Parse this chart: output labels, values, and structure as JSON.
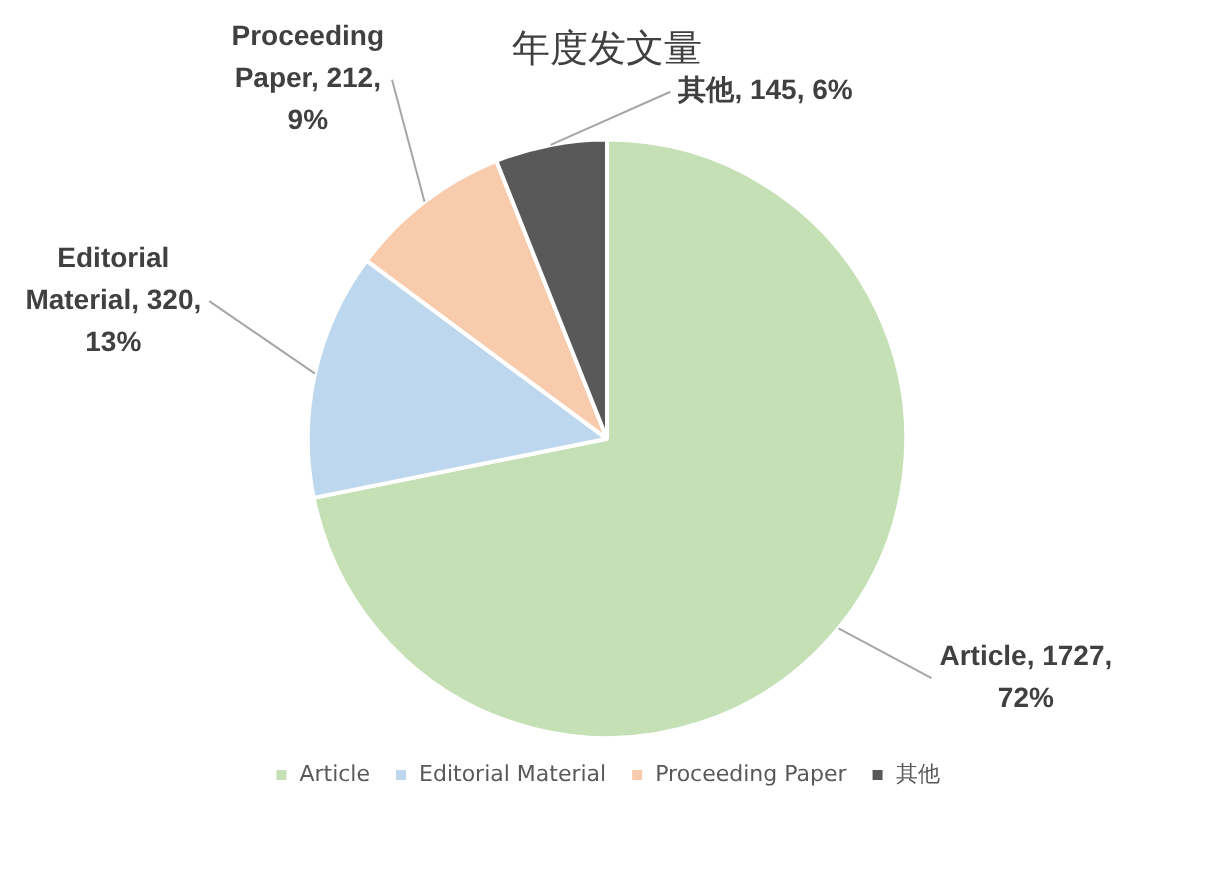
{
  "chart_data": {
    "type": "pie",
    "title": "年度发文量",
    "categories": [
      "Article",
      "Editorial Material",
      "Proceeding Paper",
      "其他"
    ],
    "values": [
      1727,
      320,
      212,
      145
    ],
    "colors": [
      "#c5e0b4",
      "#bdd7ee",
      "#f8cbad",
      "#595959"
    ],
    "value_labels": [
      "Article, 1727, 72%",
      "Editorial Material, 320, 13%",
      "Proceeding Paper, 212, 9%",
      "其他, 145, 6%"
    ],
    "legend": "bottom"
  }
}
